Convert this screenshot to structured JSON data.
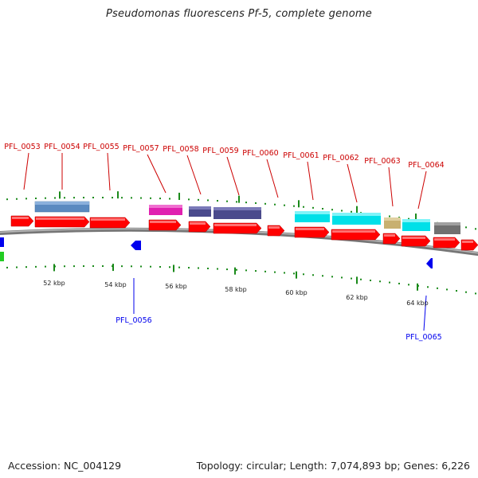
{
  "title": "Pseudomonas fluorescens Pf-5, complete genome",
  "footer": {
    "accession": "Accession: NC_004129",
    "summary": "Topology: circular; Length: 7,074,893 bp; Genes: 6,226"
  },
  "colors": {
    "cds_red": "#ff0000",
    "gene_label_red": "#cc0000",
    "reverse_blue": "#0000ee",
    "tick_green": "#1a8a1a",
    "backbone_gray": "#8a8a8a",
    "steel_blue": "#5a8ac0",
    "magenta": "#e020b0",
    "navy_purple": "#4a4a8c",
    "cyan": "#00e0e8",
    "tan": "#c8b070",
    "dark_gray": "#707070",
    "green": "#22cc22"
  },
  "scale_labels": [
    "52 kbp",
    "54 kbp",
    "56 kbp",
    "58 kbp",
    "60 kbp",
    "62 kbp",
    "64 kbp"
  ],
  "top_genes": [
    "PFL_0053",
    "PFL_0054",
    "PFL_0055",
    "PFL_0057",
    "PFL_0058",
    "PFL_0059",
    "PFL_0060",
    "PFL_0061",
    "PFL_0062",
    "PFL_0063",
    "PFL_0064"
  ],
  "bottom_genes": [
    "PFL_0056",
    "PFL_0065"
  ]
}
